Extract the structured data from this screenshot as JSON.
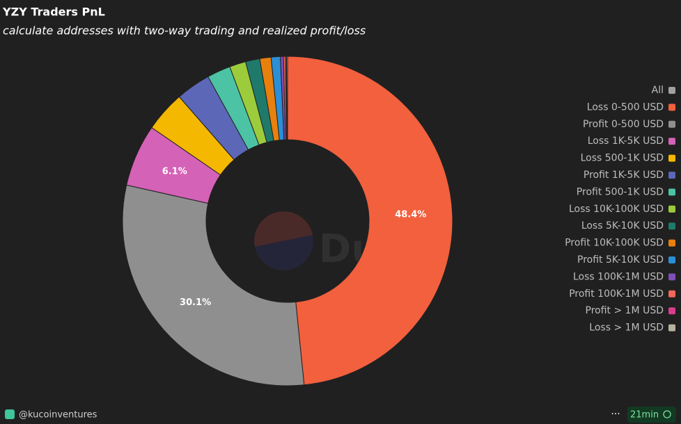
{
  "chart_data": {
    "type": "donut",
    "title": "YZY Traders PnL",
    "subtitle": "calculate addresses with two-way trading and realized profit/loss",
    "categories": [
      "Loss 0-500 USD",
      "Profit 0-500 USD",
      "Loss 1K-5K USD",
      "Loss 500-1K USD",
      "Profit 1K-5K USD",
      "Profit 500-1K USD",
      "Loss 10K-100K USD",
      "Loss 5K-10K USD",
      "Profit 10K-100K USD",
      "Profit 5K-10K USD",
      "Loss 100K-1M USD",
      "Profit 100K-1M USD",
      "Profit > 1M USD",
      "Loss > 1M USD"
    ],
    "values": [
      48.4,
      30.1,
      6.1,
      4.0,
      3.4,
      2.3,
      1.6,
      1.4,
      1.1,
      0.9,
      0.3,
      0.2,
      0.1,
      0.1
    ],
    "value_labels": [
      "48.4%",
      "30.1%",
      "6.1%",
      null,
      null,
      null,
      null,
      null,
      null,
      null,
      null,
      null,
      null,
      null
    ],
    "colors": [
      "#f2603e",
      "#8f8f8f",
      "#d462b6",
      "#f5b800",
      "#5c67b8",
      "#4cc3a4",
      "#9ccb3c",
      "#1f7a6b",
      "#e8800e",
      "#2b8fd6",
      "#7e4fb5",
      "#f0675a",
      "#d63d8e",
      "#b7b29d"
    ],
    "legend_all": {
      "name": "All",
      "color": "#a0a0a0"
    },
    "legend": "right",
    "watermark": "Dune"
  },
  "footer": {
    "author": "@kucoinventures",
    "age": "21min"
  }
}
